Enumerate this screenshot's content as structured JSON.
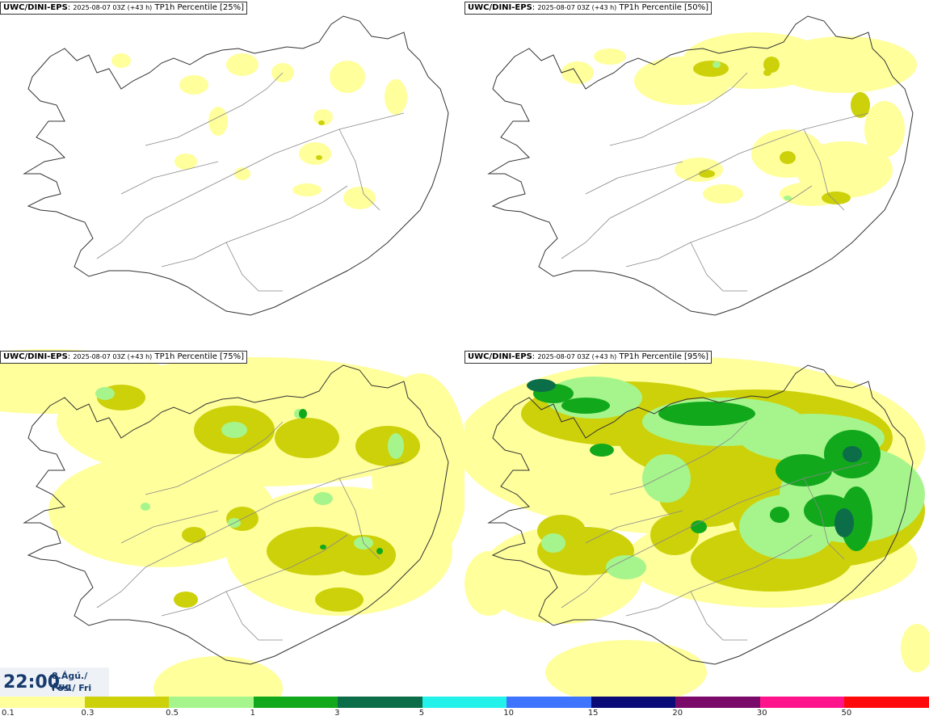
{
  "panels": [
    {
      "model": "UWC/DINI-EPS",
      "run": "2025-08-07 03Z (+43 h)",
      "var": "TP1h Percentile [25%]"
    },
    {
      "model": "UWC/DINI-EPS",
      "run": "2025-08-07 03Z (+43 h)",
      "var": "TP1h Percentile [50%]"
    },
    {
      "model": "UWC/DINI-EPS",
      "run": "2025-08-07 03Z (+43 h)",
      "var": "TP1h Percentile [75%]"
    },
    {
      "model": "UWC/DINI-EPS",
      "run": "2025-08-07 03Z (+43 h)",
      "var": "TP1h Percentile [95%]"
    }
  ],
  "valid_time": {
    "time": "22:00",
    "date_line1": "8.Ágú./ Aug",
    "date_line2": "Fös./ Fri"
  },
  "legend": {
    "colors": [
      "#ffff9c",
      "#cdd10a",
      "#a6f58c",
      "#12a81c",
      "#0c6e48",
      "#22f2ea",
      "#3f74ff",
      "#0b0b78",
      "#7a0a6a",
      "#ff148c",
      "#ff0a0a"
    ],
    "ticks": [
      "0.1",
      "0.3",
      "0.5",
      "1",
      "3",
      "5",
      "10",
      "15",
      "20",
      "30",
      "50"
    ]
  },
  "colors": {
    "coast": "#333333",
    "roads": "#888888",
    "background": "#ffffff"
  }
}
